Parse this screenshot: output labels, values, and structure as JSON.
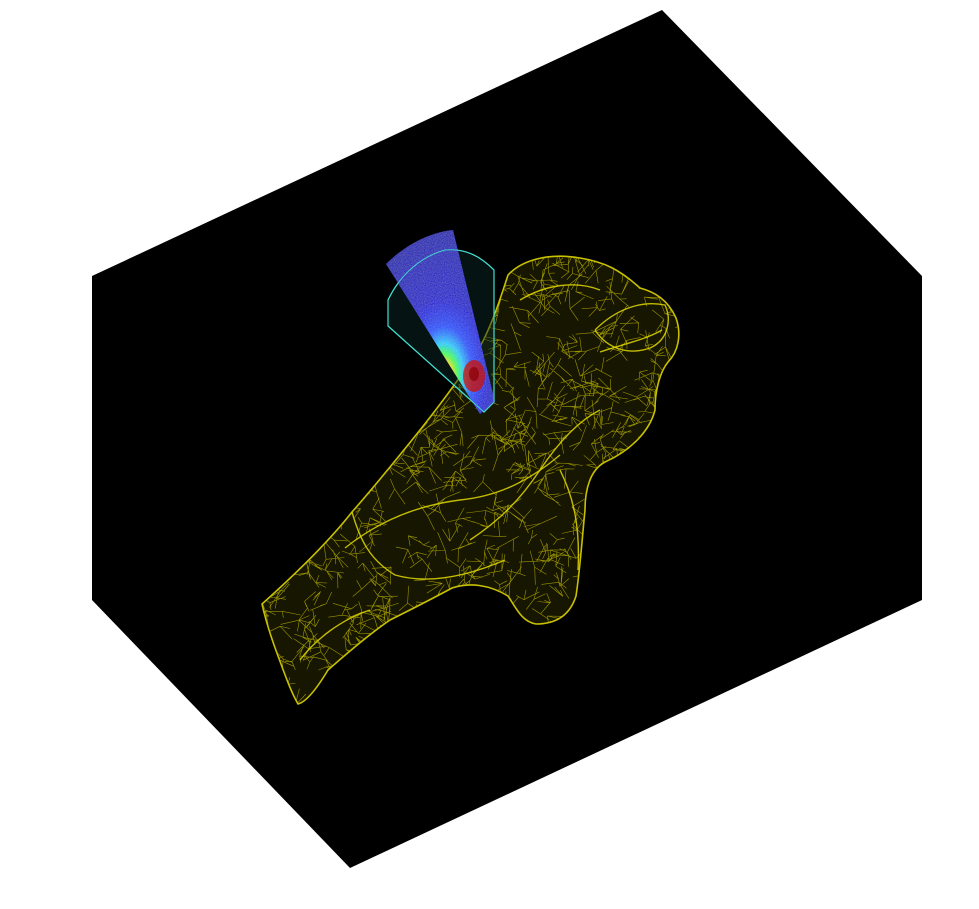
{
  "scene": {
    "background_color": "#ffffff",
    "volume_face_color": "#000000",
    "mesh_color": "#c8c000",
    "mesh_highlight_color": "#ffff33",
    "fan_outline_color": "#40e0d0",
    "beam_colors": {
      "outer": "#0000c8",
      "mid": "#0050ff",
      "cyan": "#00d0ff",
      "green": "#40ff60",
      "yellow": "#ffe000",
      "core": "#d01000"
    }
  }
}
